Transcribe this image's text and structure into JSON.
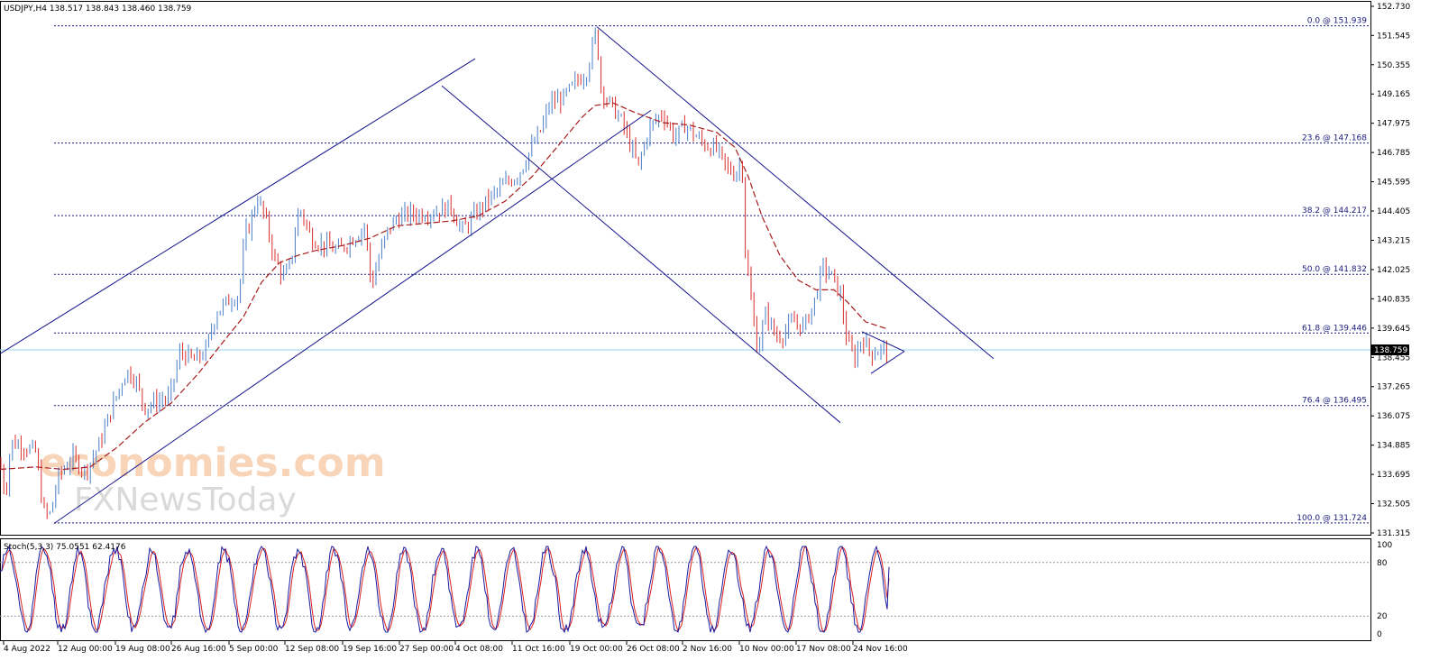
{
  "header": {
    "symbol_line": "USDJPY,H4  138.517 138.843 138.460 138.759"
  },
  "stoch_header": "Stoch(5,3,3) 75.0551 62.4176",
  "current_price_label": "138.759",
  "watermark": {
    "line1": "economies.com",
    "line2": "FXNewsToday"
  },
  "colors": {
    "bull": "#4a7fc8",
    "bear": "#d82c2c",
    "ma": "#a81c1c",
    "channel": "#14148c",
    "fib": "#1a1a7a",
    "stoch_main": "#1a1aa0",
    "stoch_signal": "#d82020",
    "price_line": "#8fd0e8"
  },
  "chart_data": {
    "type": "candlestick",
    "ylim": [
      131.315,
      152.73
    ],
    "y_ticks": [
      "152.730",
      "151.545",
      "150.355",
      "149.165",
      "147.975",
      "146.785",
      "145.595",
      "144.405",
      "143.215",
      "142.025",
      "140.835",
      "139.645",
      "138.455",
      "137.265",
      "136.075",
      "134.885",
      "133.695",
      "132.505",
      "131.315"
    ],
    "x_ticks": [
      "4 Aug 2022",
      "12 Aug 00:00",
      "19 Aug 08:00",
      "26 Aug 16:00",
      "5 Sep 00:00",
      "12 Sep 08:00",
      "19 Sep 16:00",
      "27 Sep 00:00",
      "4 Oct 08:00",
      "11 Oct 16:00",
      "19 Oct 00:00",
      "26 Oct 08:00",
      "2 Nov 16:00",
      "10 Nov 00:00",
      "17 Nov 08:00",
      "24 Nov 16:00"
    ],
    "fib_levels": [
      {
        "label": "0.0 @ 151.939",
        "value": 151.939
      },
      {
        "label": "23.6 @ 147.168",
        "value": 147.168
      },
      {
        "label": "38.2 @ 144.217",
        "value": 144.217
      },
      {
        "label": "50.0 @ 141.832",
        "value": 141.832
      },
      {
        "label": "61.8 @ 139.446",
        "value": 139.446
      },
      {
        "label": "76.4 @ 136.495",
        "value": 136.495
      },
      {
        "label": "100.0 @ 131.724",
        "value": 131.724
      }
    ],
    "current_price": 138.759,
    "price_path": [
      [
        0,
        134.2
      ],
      [
        6,
        132.8
      ],
      [
        12,
        135.0
      ],
      [
        22,
        134.9
      ],
      [
        40,
        134.6
      ],
      [
        48,
        132.2
      ],
      [
        55,
        132.0
      ],
      [
        65,
        133.6
      ],
      [
        80,
        134.4
      ],
      [
        95,
        133.8
      ],
      [
        110,
        134.9
      ],
      [
        125,
        136.5
      ],
      [
        140,
        137.9
      ],
      [
        150,
        137.6
      ],
      [
        160,
        136.4
      ],
      [
        175,
        136.7
      ],
      [
        188,
        136.8
      ],
      [
        200,
        138.7
      ],
      [
        215,
        138.3
      ],
      [
        228,
        138.7
      ],
      [
        240,
        140.3
      ],
      [
        255,
        140.8
      ],
      [
        265,
        141.0
      ],
      [
        272,
        143.5
      ],
      [
        278,
        143.9
      ],
      [
        285,
        145.0
      ],
      [
        295,
        144.0
      ],
      [
        305,
        142.4
      ],
      [
        315,
        141.7
      ],
      [
        322,
        142.2
      ],
      [
        332,
        144.6
      ],
      [
        345,
        143.3
      ],
      [
        360,
        143.0
      ],
      [
        375,
        142.8
      ],
      [
        395,
        143.4
      ],
      [
        405,
        143.8
      ],
      [
        412,
        141.3
      ],
      [
        420,
        142.5
      ],
      [
        430,
        143.6
      ],
      [
        440,
        144.1
      ],
      [
        455,
        144.3
      ],
      [
        470,
        144.3
      ],
      [
        485,
        144.4
      ],
      [
        500,
        144.6
      ],
      [
        512,
        143.6
      ],
      [
        520,
        143.9
      ],
      [
        530,
        144.4
      ],
      [
        545,
        145.0
      ],
      [
        560,
        145.5
      ],
      [
        575,
        145.9
      ],
      [
        590,
        147.0
      ],
      [
        600,
        147.7
      ],
      [
        610,
        148.8
      ],
      [
        625,
        149.0
      ],
      [
        640,
        149.7
      ],
      [
        650,
        150.0
      ],
      [
        658,
        151.2
      ],
      [
        662,
        151.9
      ],
      [
        665,
        149.6
      ],
      [
        672,
        149.0
      ],
      [
        680,
        148.6
      ],
      [
        690,
        148.0
      ],
      [
        700,
        147.0
      ],
      [
        708,
        146.2
      ],
      [
        720,
        147.8
      ],
      [
        735,
        148.4
      ],
      [
        748,
        147.4
      ],
      [
        760,
        147.9
      ],
      [
        770,
        147.5
      ],
      [
        782,
        147.1
      ],
      [
        795,
        146.9
      ],
      [
        805,
        146.2
      ],
      [
        815,
        145.9
      ],
      [
        823,
        146.5
      ],
      [
        826,
        143.0
      ],
      [
        832,
        141.0
      ],
      [
        840,
        138.8
      ],
      [
        850,
        140.3
      ],
      [
        860,
        139.3
      ],
      [
        868,
        139.4
      ],
      [
        880,
        139.9
      ],
      [
        892,
        139.7
      ],
      [
        903,
        140.7
      ],
      [
        912,
        142.1
      ],
      [
        922,
        141.8
      ],
      [
        932,
        141.0
      ],
      [
        940,
        139.0
      ],
      [
        948,
        138.4
      ],
      [
        956,
        139.3
      ],
      [
        966,
        138.6
      ],
      [
        976,
        138.8
      ],
      [
        986,
        138.76
      ]
    ],
    "ma_path": [
      [
        0,
        133.9
      ],
      [
        40,
        134.0
      ],
      [
        70,
        133.9
      ],
      [
        100,
        134.0
      ],
      [
        130,
        134.8
      ],
      [
        160,
        135.8
      ],
      [
        190,
        136.6
      ],
      [
        220,
        137.8
      ],
      [
        250,
        139.2
      ],
      [
        270,
        140.1
      ],
      [
        290,
        141.5
      ],
      [
        310,
        142.3
      ],
      [
        330,
        142.6
      ],
      [
        350,
        142.8
      ],
      [
        380,
        143.0
      ],
      [
        410,
        143.3
      ],
      [
        440,
        143.8
      ],
      [
        470,
        143.9
      ],
      [
        500,
        144.0
      ],
      [
        530,
        144.2
      ],
      [
        560,
        144.8
      ],
      [
        590,
        145.8
      ],
      [
        620,
        147.1
      ],
      [
        645,
        148.2
      ],
      [
        660,
        148.7
      ],
      [
        680,
        148.8
      ],
      [
        705,
        148.4
      ],
      [
        735,
        148.0
      ],
      [
        765,
        147.9
      ],
      [
        795,
        147.6
      ],
      [
        815,
        147.0
      ],
      [
        830,
        145.8
      ],
      [
        845,
        144.2
      ],
      [
        865,
        142.6
      ],
      [
        885,
        141.6
      ],
      [
        905,
        141.2
      ],
      [
        925,
        141.2
      ],
      [
        940,
        140.7
      ],
      [
        960,
        139.9
      ],
      [
        985,
        139.6
      ]
    ],
    "channels": [
      [
        [
          0,
          138.6
        ],
        [
          527,
          150.6
        ]
      ],
      [
        [
          60,
          131.7
        ],
        [
          722,
          148.5
        ]
      ],
      [
        [
          490,
          149.5
        ],
        [
          932,
          135.8
        ]
      ],
      [
        [
          662,
          151.9
        ],
        [
          1102,
          138.4
        ]
      ],
      [
        [
          956,
          139.5
        ],
        [
          1003,
          138.7
        ]
      ],
      [
        [
          966,
          137.8
        ],
        [
          1003,
          138.7
        ]
      ]
    ],
    "stochastic": {
      "ylim": [
        0,
        100
      ],
      "levels": [
        20,
        80
      ],
      "axis_labels": [
        "100",
        "80",
        "20",
        "0"
      ],
      "current_main": 75.0551,
      "current_signal": 62.4176
    }
  }
}
